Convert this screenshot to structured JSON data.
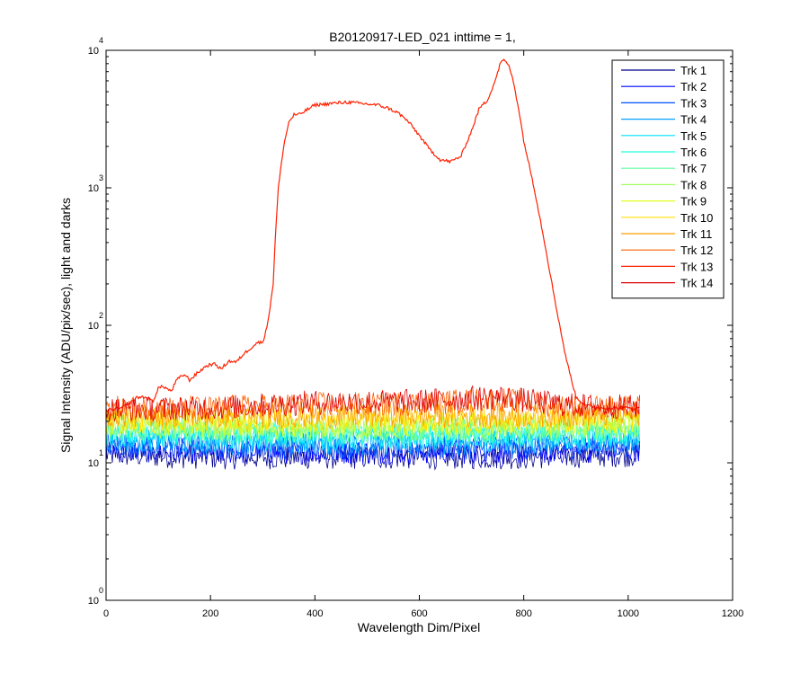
{
  "chart_data": {
    "type": "line",
    "title": "B20120917-LED_021 inttime = 1,",
    "xlabel": "Wavelength Dim/Pixel",
    "ylabel": "Signal Intensity (ADU/pix/sec), light and darks",
    "xlim": [
      0,
      1200
    ],
    "ylim": [
      1,
      10000
    ],
    "yscale": "log",
    "grid": false,
    "legend_position": "top-right",
    "xticks": [
      0,
      200,
      400,
      600,
      800,
      1000,
      1200
    ],
    "yticks": [
      {
        "value": 1,
        "base": "10",
        "exp": "0"
      },
      {
        "value": 10,
        "base": "10",
        "exp": "1"
      },
      {
        "value": 100,
        "base": "10",
        "exp": "2"
      },
      {
        "value": 1000,
        "base": "10",
        "exp": "3"
      },
      {
        "value": 10000,
        "base": "10",
        "exp": "4"
      }
    ],
    "series": [
      {
        "name": "Trk 1",
        "color": "#00008f",
        "x": [
          0,
          200,
          400,
          600,
          800,
          1023
        ],
        "y": [
          11.5,
          11,
          11,
          11,
          11,
          11.5
        ]
      },
      {
        "name": "Trk 2",
        "color": "#0000ff",
        "x": [
          0,
          200,
          400,
          600,
          800,
          1023
        ],
        "y": [
          12.5,
          12,
          12,
          12,
          12,
          12.5
        ]
      },
      {
        "name": "Trk 3",
        "color": "#0050ff",
        "x": [
          0,
          200,
          400,
          600,
          800,
          1023
        ],
        "y": [
          13.5,
          13,
          13,
          13,
          13,
          13.5
        ]
      },
      {
        "name": "Trk 4",
        "color": "#00a0ff",
        "x": [
          0,
          200,
          400,
          600,
          800,
          1023
        ],
        "y": [
          14.5,
          14,
          14,
          14,
          14,
          14.5
        ]
      },
      {
        "name": "Trk 5",
        "color": "#00e0ff",
        "x": [
          0,
          200,
          400,
          600,
          800,
          1023
        ],
        "y": [
          15.5,
          15,
          15,
          15,
          15,
          15.5
        ]
      },
      {
        "name": "Trk 6",
        "color": "#20ffdf",
        "x": [
          0,
          200,
          400,
          600,
          800,
          1023
        ],
        "y": [
          16.5,
          16,
          16,
          16,
          16,
          16.5
        ]
      },
      {
        "name": "Trk 7",
        "color": "#60ffa0",
        "x": [
          0,
          200,
          400,
          600,
          800,
          1023
        ],
        "y": [
          17.5,
          17,
          17,
          17,
          17,
          17.5
        ]
      },
      {
        "name": "Trk 8",
        "color": "#a0ff60",
        "x": [
          0,
          200,
          400,
          600,
          800,
          1023
        ],
        "y": [
          18.5,
          18,
          18,
          18,
          18,
          18.5
        ]
      },
      {
        "name": "Trk 9",
        "color": "#dfff20",
        "x": [
          0,
          200,
          400,
          600,
          800,
          1023
        ],
        "y": [
          19.5,
          19,
          19,
          19,
          19,
          19.5
        ]
      },
      {
        "name": "Trk 10",
        "color": "#ffe000",
        "x": [
          0,
          200,
          400,
          600,
          800,
          1023
        ],
        "y": [
          21,
          20.5,
          20.5,
          20.5,
          20.5,
          21
        ]
      },
      {
        "name": "Trk 11",
        "color": "#ffa000",
        "x": [
          0,
          200,
          400,
          600,
          800,
          1023
        ],
        "y": [
          22.5,
          22,
          22,
          22,
          22,
          22.5
        ]
      },
      {
        "name": "Trk 12",
        "color": "#ff6000",
        "x": [
          0,
          200,
          400,
          600,
          700,
          760,
          800,
          900,
          1023
        ],
        "y": [
          25,
          25,
          26.5,
          27,
          28.5,
          29,
          27.5,
          25.5,
          25
        ]
      },
      {
        "name": "Trk 13",
        "color": "#ff2000",
        "x": [
          0,
          30,
          50,
          60,
          75,
          90,
          100,
          110,
          125,
          135,
          150,
          160,
          175,
          190,
          200,
          210,
          220,
          235,
          250,
          260,
          270,
          280,
          290,
          300,
          310,
          320,
          325,
          330,
          340,
          350,
          360,
          370,
          380,
          400,
          430,
          460,
          490,
          520,
          540,
          560,
          580,
          600,
          620,
          640,
          660,
          680,
          700,
          715,
          730,
          745,
          755,
          760,
          770,
          780,
          790,
          800,
          820,
          840,
          860,
          880,
          900,
          920,
          950,
          1000,
          1023
        ],
        "y": [
          24,
          25,
          28,
          30,
          30,
          28,
          35,
          36,
          33,
          40,
          44,
          40,
          45,
          50,
          52,
          52,
          48,
          55,
          54,
          60,
          65,
          70,
          75,
          75,
          105,
          200,
          500,
          1000,
          2000,
          3000,
          3400,
          3400,
          3600,
          4000,
          4100,
          4200,
          4100,
          4000,
          3800,
          3500,
          3000,
          2400,
          1900,
          1600,
          1550,
          1700,
          2600,
          3800,
          4300,
          6000,
          8000,
          8500,
          8000,
          6000,
          3800,
          2200,
          1000,
          400,
          150,
          60,
          30,
          26,
          25,
          25,
          25
        ]
      },
      {
        "name": "Trk 14",
        "color": "#df0000",
        "x": [
          0,
          200,
          400,
          600,
          700,
          760,
          800,
          900,
          1023
        ],
        "y": [
          24.5,
          25,
          27.5,
          28,
          29.5,
          30,
          28.5,
          26,
          25.5
        ]
      }
    ]
  }
}
